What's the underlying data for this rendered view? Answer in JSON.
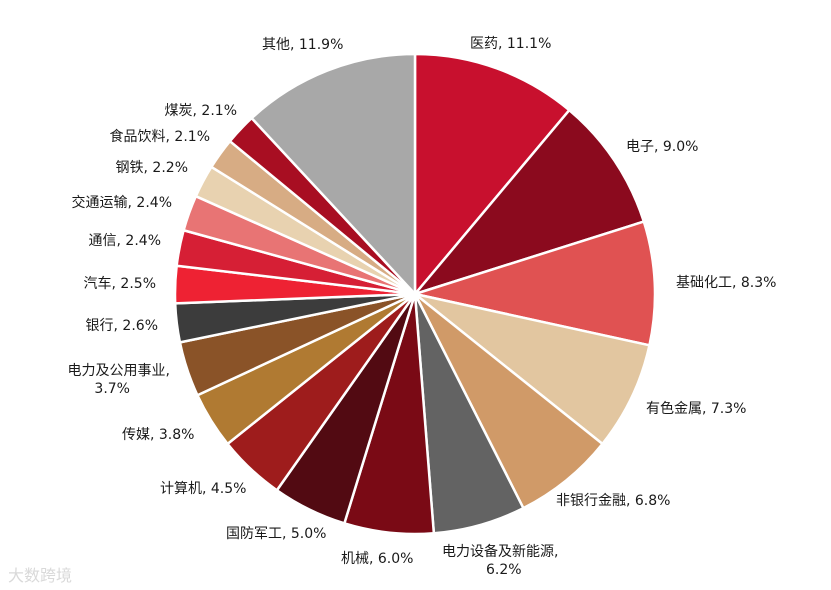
{
  "chart_data": {
    "type": "pie",
    "title": "",
    "slices": [
      {
        "label": "医药, 11.1%",
        "value": 11.1,
        "color": "#C8102E"
      },
      {
        "label": "电子, 9.0%",
        "value": 9.0,
        "color": "#8B0A1E"
      },
      {
        "label": "基础化工, 8.3%",
        "value": 8.3,
        "color": "#E05252"
      },
      {
        "label": "有色金属, 7.3%",
        "value": 7.3,
        "color": "#E2C6A0"
      },
      {
        "label": "非银行金融, 6.8%",
        "value": 6.8,
        "color": "#D09A68"
      },
      {
        "label": "电力设备及新能源, 6.2%",
        "value": 6.2,
        "color": "#636363"
      },
      {
        "label": "机械, 6.0%",
        "value": 6.0,
        "color": "#7A0A15"
      },
      {
        "label": "国防军工, 5.0%",
        "value": 5.0,
        "color": "#520A12"
      },
      {
        "label": "计算机, 4.5%",
        "value": 4.5,
        "color": "#9E1C1C"
      },
      {
        "label": "传媒, 3.8%",
        "value": 3.8,
        "color": "#B07A32"
      },
      {
        "label": "电力及公用事业, 3.7%",
        "value": 3.7,
        "color": "#8A5328"
      },
      {
        "label": "银行, 2.6%",
        "value": 2.6,
        "color": "#3C3C3C"
      },
      {
        "label": "汽车, 2.5%",
        "value": 2.5,
        "color": "#EE2233"
      },
      {
        "label": "通信, 2.4%",
        "value": 2.4,
        "color": "#D61F35"
      },
      {
        "label": "交通运输, 2.4%",
        "value": 2.4,
        "color": "#E87474"
      },
      {
        "label": "钢铁, 2.2%",
        "value": 2.2,
        "color": "#E8D2B0"
      },
      {
        "label": "食品饮料, 2.1%",
        "value": 2.1,
        "color": "#D7AC84"
      },
      {
        "label": "煤炭, 2.1%",
        "value": 2.1,
        "color": "#A80E22"
      },
      {
        "label": "其他, 11.9%",
        "value": 11.9,
        "color": "#A8A8A8"
      }
    ]
  },
  "watermark": "大数跨境"
}
